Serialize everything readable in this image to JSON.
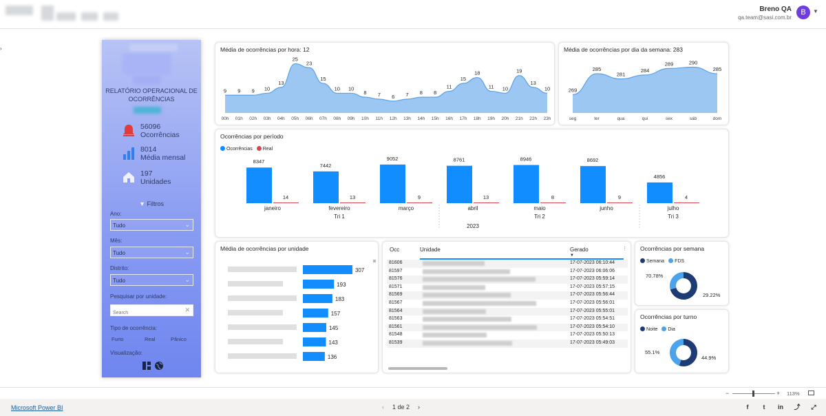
{
  "user": {
    "name": "Breno QA",
    "email": "qa.team@sasi.com.br",
    "initial": "B"
  },
  "sidebar": {
    "title": "RELATÓRIO OPERACIONAL DE OCORRÊNCIAS",
    "kpis": [
      {
        "value": "56096",
        "label": "Ocorrências",
        "icon": "bell-icon"
      },
      {
        "value": "8014",
        "label": "Média mensal",
        "icon": "bar-chart-icon"
      },
      {
        "value": "197",
        "label": "Unidades",
        "icon": "home-icon"
      }
    ],
    "filters_title": "Filtros",
    "filters": [
      {
        "label": "Ano:",
        "value": "Tudo"
      },
      {
        "label": "Mês:",
        "value": "Tudo"
      },
      {
        "label": "Distrito:",
        "value": "Tudo"
      }
    ],
    "search_label": "Pesquisar por unidade:",
    "search_placeholder": "Search",
    "tipo_label": "Tipo de ocorrência:",
    "tipo_options": [
      "Furto",
      "Real",
      "Pânico"
    ],
    "viz_label": "Visualização:"
  },
  "charts": {
    "hourly": {
      "title": "Média de ocorrências por hora: 12",
      "chart_data": {
        "type": "area",
        "categories": [
          "00h",
          "01h",
          "02h",
          "03h",
          "04h",
          "05h",
          "06h",
          "07h",
          "08h",
          "09h",
          "10h",
          "11h",
          "12h",
          "13h",
          "14h",
          "15h",
          "16h",
          "17h",
          "18h",
          "19h",
          "20h",
          "21h",
          "22h",
          "23h"
        ],
        "values": [
          9,
          9,
          9,
          10,
          13,
          25,
          23,
          15,
          10,
          10,
          8,
          7,
          6,
          7,
          8,
          8,
          11,
          15,
          18,
          11,
          10,
          19,
          13,
          10
        ],
        "ylim": [
          0,
          28
        ],
        "color": "#9cc7f2"
      }
    },
    "weekday": {
      "title": "Média de ocorrências por dia da semana: 283",
      "chart_data": {
        "type": "area",
        "categories": [
          "seg",
          "ter",
          "qua",
          "qui",
          "sex",
          "sáb",
          "dom"
        ],
        "values": [
          269,
          285,
          281,
          284,
          289,
          290,
          285
        ],
        "ylim": [
          255,
          295
        ],
        "color": "#9cc7f2"
      }
    },
    "period": {
      "title": "Ocorrências por período",
      "legend": [
        {
          "name": "Ocorrências",
          "color": "#118dff"
        },
        {
          "name": "Real",
          "color": "#d64550"
        }
      ],
      "chart_data": {
        "type": "bar",
        "categories": [
          "janeiro",
          "fevereiro",
          "março",
          "abril",
          "maio",
          "junho",
          "julho"
        ],
        "quarters": [
          {
            "label": "Tri 1",
            "months": 3
          },
          {
            "label": "Tri 2",
            "months": 3
          },
          {
            "label": "Tri 3",
            "months": 1
          }
        ],
        "year": "2023",
        "series": [
          {
            "name": "Ocorrências",
            "values": [
              8347,
              7442,
              9052,
              8761,
              8946,
              8692,
              4856
            ],
            "color": "#118dff"
          },
          {
            "name": "Real",
            "values": [
              14,
              13,
              9,
              13,
              8,
              9,
              4
            ],
            "color": "#d64550"
          }
        ],
        "ylim": [
          0,
          10000
        ]
      }
    },
    "unit": {
      "title": "Média de ocorrências por unidade",
      "chart_data": {
        "type": "bar",
        "values": [
          307,
          193,
          183,
          157,
          145,
          143,
          136
        ],
        "xlim": [
          0,
          320
        ],
        "color": "#118dff"
      }
    },
    "week": {
      "title": "Ocorrências por semana",
      "legend": [
        {
          "name": "Semana",
          "color": "#1f3b73"
        },
        {
          "name": "FDS",
          "color": "#4aa3ec"
        }
      ],
      "chart_data": {
        "type": "pie",
        "labels": [
          "Semana",
          "FDS"
        ],
        "values": [
          70.78,
          29.22
        ],
        "value_labels": [
          "70.78%",
          "29.22%"
        ],
        "colors": [
          "#1f3b73",
          "#4aa3ec"
        ]
      }
    },
    "shift": {
      "title": "Ocorrências por turno",
      "legend": [
        {
          "name": "Noite",
          "color": "#1f3b73"
        },
        {
          "name": "Dia",
          "color": "#4aa3ec"
        }
      ],
      "chart_data": {
        "type": "pie",
        "labels": [
          "Noite",
          "Dia"
        ],
        "values": [
          55.1,
          44.9
        ],
        "value_labels": [
          "55.1%",
          "44.9%"
        ],
        "colors": [
          "#1f3b73",
          "#4aa3ec"
        ]
      }
    }
  },
  "table": {
    "columns": [
      "Occ",
      "Unidade",
      "Gerado"
    ],
    "rows": [
      {
        "occ": "81606",
        "gerado": "17-07-2023 06:10:44"
      },
      {
        "occ": "81597",
        "gerado": "17-07-2023 06:06:06"
      },
      {
        "occ": "81576",
        "gerado": "17-07-2023 05:59:14"
      },
      {
        "occ": "81571",
        "gerado": "17-07-2023 05:57:15"
      },
      {
        "occ": "81569",
        "gerado": "17-07-2023 05:56:44"
      },
      {
        "occ": "81567",
        "gerado": "17-07-2023 05:56:01"
      },
      {
        "occ": "81564",
        "gerado": "17-07-2023 05:55:01"
      },
      {
        "occ": "81563",
        "gerado": "17-07-2023 05:54:51"
      },
      {
        "occ": "81561",
        "gerado": "17-07-2023 05:54:10"
      },
      {
        "occ": "81548",
        "gerado": "17-07-2023 05:50:13"
      },
      {
        "occ": "81539",
        "gerado": "17-07-2023 05:49:03"
      }
    ]
  },
  "footer": {
    "brand_link": "Microsoft Power BI",
    "page_indicator": "1 de 2",
    "zoom": "113%",
    "social": [
      "facebook-icon",
      "twitter-icon",
      "linkedin-icon",
      "share-icon",
      "expand-icon"
    ]
  }
}
